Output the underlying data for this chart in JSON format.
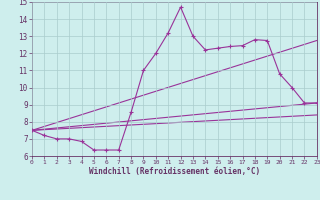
{
  "xlabel": "Windchill (Refroidissement éolien,°C)",
  "background_color": "#ceeeed",
  "grid_color": "#aacccc",
  "line_color": "#993399",
  "axis_color": "#663366",
  "xlim": [
    0,
    23
  ],
  "ylim": [
    6,
    15
  ],
  "yticks": [
    6,
    7,
    8,
    9,
    10,
    11,
    12,
    13,
    14,
    15
  ],
  "xticks": [
    0,
    1,
    2,
    3,
    4,
    5,
    6,
    7,
    8,
    9,
    10,
    11,
    12,
    13,
    14,
    15,
    16,
    17,
    18,
    19,
    20,
    21,
    22,
    23
  ],
  "series": [
    {
      "x": [
        0,
        1,
        2,
        3,
        4,
        5,
        6,
        7,
        8,
        9,
        10,
        11,
        12,
        13,
        14,
        15,
        16,
        17,
        18,
        19,
        20,
        21,
        22,
        23
      ],
      "y": [
        7.5,
        7.2,
        7.0,
        7.0,
        6.85,
        6.35,
        6.35,
        6.35,
        8.55,
        11.0,
        12.0,
        13.2,
        14.7,
        13.0,
        12.2,
        12.3,
        12.4,
        12.45,
        12.8,
        12.75,
        10.8,
        10.0,
        9.1,
        9.1
      ]
    },
    {
      "x": [
        0,
        23
      ],
      "y": [
        7.5,
        9.1
      ]
    },
    {
      "x": [
        0,
        23
      ],
      "y": [
        7.5,
        12.75
      ]
    },
    {
      "x": [
        0,
        23
      ],
      "y": [
        7.5,
        8.4
      ]
    }
  ]
}
